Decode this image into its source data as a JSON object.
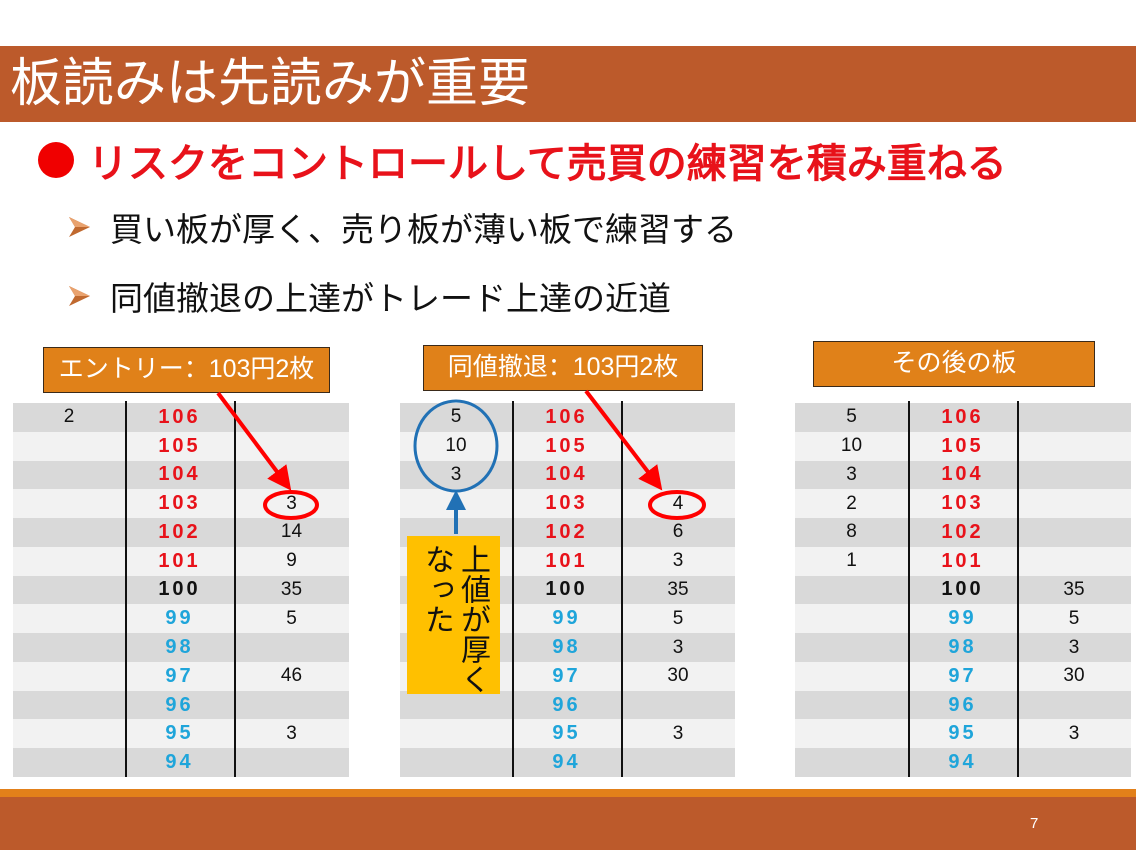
{
  "slide": {
    "title": "板読みは先読みが重要",
    "heading": "リスクをコントロールして売買の練習を積み重ねる",
    "bullets": [
      "買い板が厚く、売り板が薄い板で練習する",
      "同値撤退の上達がトレード上達の近道"
    ],
    "page_number": "7",
    "callout": {
      "line1": "上値が厚く",
      "line2": "なった"
    }
  },
  "colors": {
    "title_band": "#BC5A2B",
    "heading": "#E8121A",
    "label_box": "#E08119",
    "row_dark": "#D9D9D9",
    "row_light": "#F2F2F2",
    "ask": "#E8121A",
    "mid": "#111111",
    "bid": "#1FA5DA",
    "callout_box": "#FFC000",
    "annotation_red": "#FF0000",
    "annotation_blue": "#2171B5"
  },
  "boards": [
    {
      "label": "エントリー：103円2枚",
      "rows": [
        {
          "left_qty": "2",
          "price": "106",
          "right_qty": "",
          "tone": "ask"
        },
        {
          "left_qty": "",
          "price": "105",
          "right_qty": "",
          "tone": "ask"
        },
        {
          "left_qty": "",
          "price": "104",
          "right_qty": "",
          "tone": "ask"
        },
        {
          "left_qty": "",
          "price": "103",
          "right_qty": "3",
          "tone": "ask"
        },
        {
          "left_qty": "",
          "price": "102",
          "right_qty": "14",
          "tone": "ask"
        },
        {
          "left_qty": "",
          "price": "101",
          "right_qty": "9",
          "tone": "ask"
        },
        {
          "left_qty": "",
          "price": "100",
          "right_qty": "35",
          "tone": "mid"
        },
        {
          "left_qty": "",
          "price": "99",
          "right_qty": "5",
          "tone": "bid"
        },
        {
          "left_qty": "",
          "price": "98",
          "right_qty": "",
          "tone": "bid"
        },
        {
          "left_qty": "",
          "price": "97",
          "right_qty": "46",
          "tone": "bid"
        },
        {
          "left_qty": "",
          "price": "96",
          "right_qty": "",
          "tone": "bid"
        },
        {
          "left_qty": "",
          "price": "95",
          "right_qty": "3",
          "tone": "bid"
        },
        {
          "left_qty": "",
          "price": "94",
          "right_qty": "",
          "tone": "bid"
        }
      ]
    },
    {
      "label": "同値撤退：103円2枚",
      "rows": [
        {
          "left_qty": "5",
          "price": "106",
          "right_qty": "",
          "tone": "ask"
        },
        {
          "left_qty": "10",
          "price": "105",
          "right_qty": "",
          "tone": "ask"
        },
        {
          "left_qty": "3",
          "price": "104",
          "right_qty": "",
          "tone": "ask"
        },
        {
          "left_qty": "",
          "price": "103",
          "right_qty": "4",
          "tone": "ask"
        },
        {
          "left_qty": "",
          "price": "102",
          "right_qty": "6",
          "tone": "ask"
        },
        {
          "left_qty": "",
          "price": "101",
          "right_qty": "3",
          "tone": "ask"
        },
        {
          "left_qty": "",
          "price": "100",
          "right_qty": "35",
          "tone": "mid"
        },
        {
          "left_qty": "",
          "price": "99",
          "right_qty": "5",
          "tone": "bid"
        },
        {
          "left_qty": "",
          "price": "98",
          "right_qty": "3",
          "tone": "bid"
        },
        {
          "left_qty": "",
          "price": "97",
          "right_qty": "30",
          "tone": "bid"
        },
        {
          "left_qty": "",
          "price": "96",
          "right_qty": "",
          "tone": "bid"
        },
        {
          "left_qty": "",
          "price": "95",
          "right_qty": "3",
          "tone": "bid"
        },
        {
          "left_qty": "",
          "price": "94",
          "right_qty": "",
          "tone": "bid"
        }
      ]
    },
    {
      "label": "その後の板",
      "rows": [
        {
          "left_qty": "5",
          "price": "106",
          "right_qty": "",
          "tone": "ask"
        },
        {
          "left_qty": "10",
          "price": "105",
          "right_qty": "",
          "tone": "ask"
        },
        {
          "left_qty": "3",
          "price": "104",
          "right_qty": "",
          "tone": "ask"
        },
        {
          "left_qty": "2",
          "price": "103",
          "right_qty": "",
          "tone": "ask"
        },
        {
          "left_qty": "8",
          "price": "102",
          "right_qty": "",
          "tone": "ask"
        },
        {
          "left_qty": "1",
          "price": "101",
          "right_qty": "",
          "tone": "ask"
        },
        {
          "left_qty": "",
          "price": "100",
          "right_qty": "35",
          "tone": "mid"
        },
        {
          "left_qty": "",
          "price": "99",
          "right_qty": "5",
          "tone": "bid"
        },
        {
          "left_qty": "",
          "price": "98",
          "right_qty": "3",
          "tone": "bid"
        },
        {
          "left_qty": "",
          "price": "97",
          "right_qty": "30",
          "tone": "bid"
        },
        {
          "left_qty": "",
          "price": "96",
          "right_qty": "",
          "tone": "bid"
        },
        {
          "left_qty": "",
          "price": "95",
          "right_qty": "3",
          "tone": "bid"
        },
        {
          "left_qty": "",
          "price": "94",
          "right_qty": "",
          "tone": "bid"
        }
      ]
    }
  ]
}
